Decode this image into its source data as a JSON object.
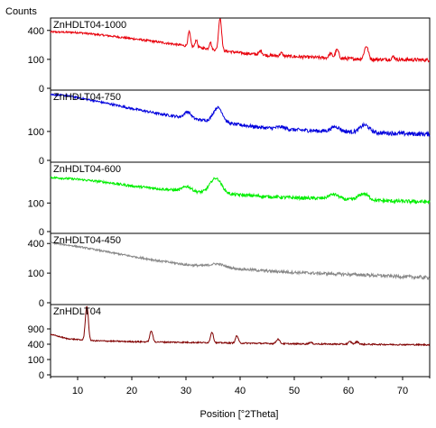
{
  "chart_data": {
    "type": "line",
    "ylabel": "Counts",
    "xlabel": "Position [°2Theta]",
    "xlim": [
      5,
      75
    ],
    "x_ticks": [
      10,
      20,
      30,
      40,
      50,
      60,
      70
    ],
    "panels": [
      {
        "name": "ZnHDLT04-1000",
        "color": "#e8000b",
        "yscale": "sqrt",
        "ylim": [
          0,
          560
        ],
        "y_ticks": [
          0,
          100,
          400
        ],
        "baseline": [
          [
            5,
            380
          ],
          [
            10,
            372
          ],
          [
            15,
            335
          ],
          [
            20,
            295
          ],
          [
            25,
            255
          ],
          [
            30,
            215
          ],
          [
            35,
            180
          ],
          [
            40,
            150
          ],
          [
            45,
            130
          ],
          [
            50,
            120
          ],
          [
            55,
            112
          ],
          [
            60,
            105
          ],
          [
            65,
            100
          ],
          [
            70,
            98
          ],
          [
            75,
            96
          ]
        ],
        "noise": 12,
        "peaks": [
          {
            "x": 30.6,
            "h": 170,
            "w": 0.22
          },
          {
            "x": 31.9,
            "h": 80,
            "w": 0.2
          },
          {
            "x": 34.5,
            "h": 75,
            "w": 0.18
          },
          {
            "x": 36.3,
            "h": 420,
            "w": 0.25
          },
          {
            "x": 43.8,
            "h": 35,
            "w": 0.25
          },
          {
            "x": 47.6,
            "h": 25,
            "w": 0.25
          },
          {
            "x": 56.7,
            "h": 35,
            "w": 0.3
          },
          {
            "x": 57.9,
            "h": 70,
            "w": 0.3
          },
          {
            "x": 63.3,
            "h": 110,
            "w": 0.35
          },
          {
            "x": 68.3,
            "h": 20,
            "w": 0.3
          }
        ]
      },
      {
        "name": "ZnHDLT04-750",
        "color": "#0000dd",
        "yscale": "sqrt",
        "ylim": [
          0,
          560
        ],
        "y_ticks": [
          0,
          100
        ],
        "baseline": [
          [
            5,
            520
          ],
          [
            8,
            500
          ],
          [
            12,
            440
          ],
          [
            16,
            380
          ],
          [
            20,
            320
          ],
          [
            25,
            260
          ],
          [
            30,
            215
          ],
          [
            35,
            180
          ],
          [
            40,
            150
          ],
          [
            45,
            125
          ],
          [
            50,
            112
          ],
          [
            55,
            103
          ],
          [
            60,
            98
          ],
          [
            65,
            92
          ],
          [
            70,
            86
          ],
          [
            75,
            82
          ]
        ],
        "noise": 14,
        "peaks": [
          {
            "x": 30.3,
            "h": 70,
            "w": 0.6
          },
          {
            "x": 35.9,
            "h": 160,
            "w": 0.8
          },
          {
            "x": 47.5,
            "h": 15,
            "w": 0.8
          },
          {
            "x": 57.6,
            "h": 35,
            "w": 0.8
          },
          {
            "x": 63.0,
            "h": 55,
            "w": 0.8
          }
        ]
      },
      {
        "name": "ZnHDLT04-600",
        "color": "#00ee00",
        "yscale": "sqrt",
        "ylim": [
          0,
          560
        ],
        "y_ticks": [
          0,
          100
        ],
        "baseline": [
          [
            5,
            360
          ],
          [
            10,
            335
          ],
          [
            15,
            300
          ],
          [
            20,
            255
          ],
          [
            25,
            225
          ],
          [
            30,
            200
          ],
          [
            35,
            180
          ],
          [
            40,
            165
          ],
          [
            45,
            150
          ],
          [
            50,
            140
          ],
          [
            55,
            135
          ],
          [
            60,
            125
          ],
          [
            65,
            118
          ],
          [
            70,
            112
          ],
          [
            75,
            108
          ]
        ],
        "noise": 14,
        "peaks": [
          {
            "x": 30.2,
            "h": 50,
            "w": 0.8
          },
          {
            "x": 35.5,
            "h": 170,
            "w": 1.0
          },
          {
            "x": 57.3,
            "h": 40,
            "w": 0.9
          },
          {
            "x": 62.8,
            "h": 55,
            "w": 0.9
          }
        ]
      },
      {
        "name": "ZnHDLT04-450",
        "color": "#888888",
        "yscale": "sqrt",
        "ylim": [
          0,
          520
        ],
        "y_ticks": [
          0,
          100,
          400
        ],
        "baseline": [
          [
            5,
            410
          ],
          [
            10,
            360
          ],
          [
            15,
            300
          ],
          [
            20,
            245
          ],
          [
            25,
            200
          ],
          [
            30,
            165
          ],
          [
            35,
            150
          ],
          [
            40,
            130
          ],
          [
            45,
            115
          ],
          [
            50,
            105
          ],
          [
            55,
            98
          ],
          [
            60,
            92
          ],
          [
            65,
            85
          ],
          [
            70,
            78
          ],
          [
            75,
            72
          ]
        ],
        "noise": 10,
        "peaks": [
          {
            "x": 35.8,
            "h": 25,
            "w": 1.2
          }
        ]
      },
      {
        "name": "ZnHDLT04",
        "color": "#800000",
        "yscale": "sqrt",
        "ylim": [
          0,
          2000
        ],
        "y_ticks": [
          0,
          100,
          400,
          900
        ],
        "baseline": [
          [
            5,
            700
          ],
          [
            8,
            560
          ],
          [
            12,
            500
          ],
          [
            20,
            470
          ],
          [
            30,
            450
          ],
          [
            40,
            430
          ],
          [
            50,
            410
          ],
          [
            60,
            400
          ],
          [
            70,
            390
          ],
          [
            75,
            385
          ]
        ],
        "noise": 18,
        "peaks": [
          {
            "x": 11.7,
            "h": 1500,
            "w": 0.25
          },
          {
            "x": 23.6,
            "h": 360,
            "w": 0.25
          },
          {
            "x": 34.8,
            "h": 340,
            "w": 0.25
          },
          {
            "x": 39.4,
            "h": 220,
            "w": 0.25
          },
          {
            "x": 47.0,
            "h": 130,
            "w": 0.3
          },
          {
            "x": 60.3,
            "h": 70,
            "w": 0.3
          },
          {
            "x": 61.6,
            "h": 70,
            "w": 0.3
          },
          {
            "x": 53.0,
            "h": 40,
            "w": 0.3
          }
        ]
      }
    ]
  }
}
